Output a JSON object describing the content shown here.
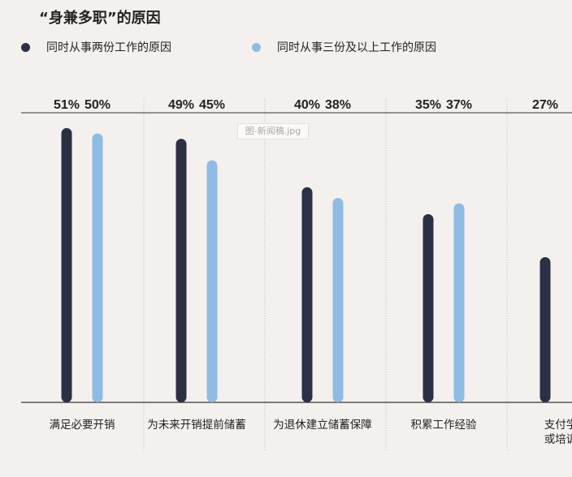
{
  "title": "“身兼多职”的原因",
  "watermark": "图-新闻稿.jpg",
  "colors": {
    "two_jobs": "#2b3044",
    "three_jobs": "#8fbbe4",
    "axis": "#333333",
    "separator": "#b8b8b8",
    "background": "#f4f0ee"
  },
  "chart_data": {
    "type": "bar",
    "title": "“身兼多职”的原因",
    "legend_position": "top-left",
    "ylim": [
      0,
      55
    ],
    "grid": false,
    "categories": [
      [
        "满足必要开销"
      ],
      [
        "为未来开销提前储蓄"
      ],
      [
        "为退休建立储蓄保障"
      ],
      [
        "积累工作经验"
      ],
      [
        "支付学",
        "或培训"
      ]
    ],
    "series": [
      {
        "name": "同时从事两份工作的原因",
        "values": [
          51,
          49,
          40,
          35,
          27
        ],
        "labels": [
          "51%",
          "49%",
          "40%",
          "35%",
          "27%"
        ]
      },
      {
        "name": "同时从事三份及以上工作的原因",
        "values": [
          50,
          45,
          38,
          37,
          null
        ],
        "labels": [
          "50%",
          "45%",
          "38%",
          "37%",
          ""
        ]
      }
    ]
  }
}
